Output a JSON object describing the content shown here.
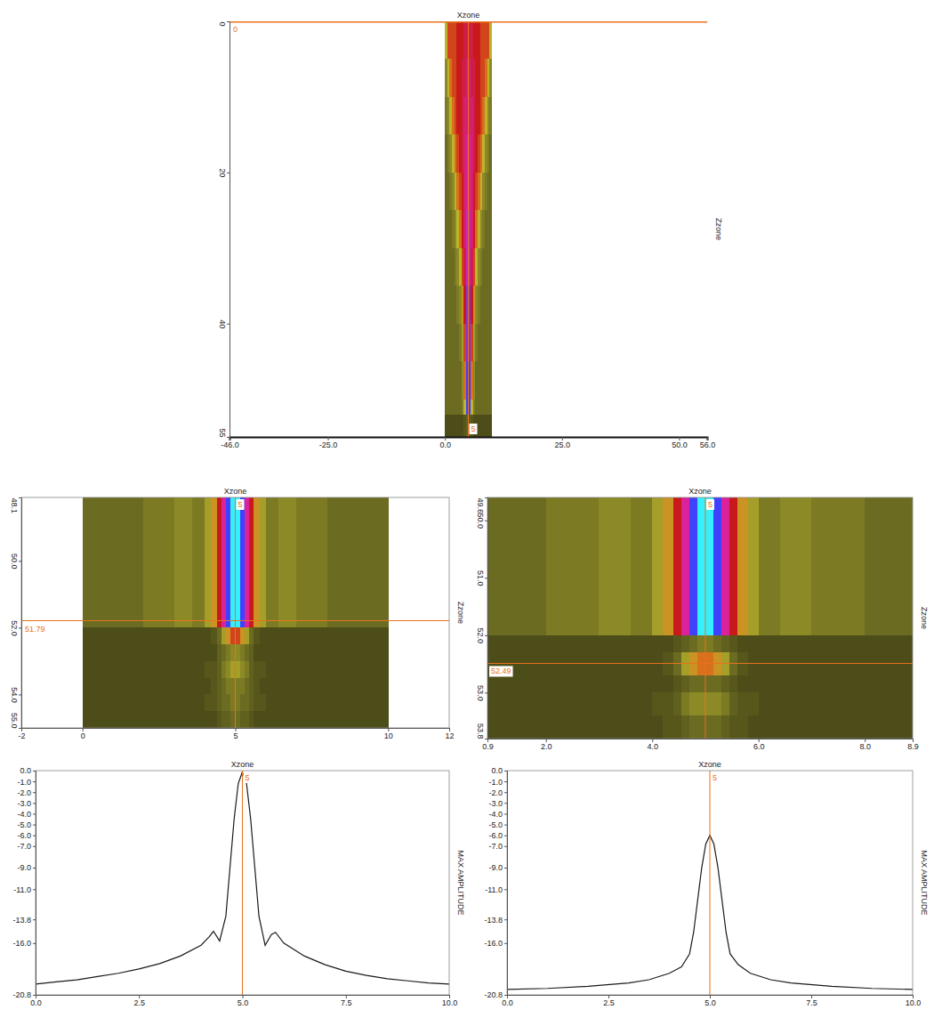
{
  "chart_data": [
    {
      "type": "heatmap",
      "title": "Xzone",
      "y_label": "Zzone",
      "xlim": [
        -46,
        56
      ],
      "xticks": [
        {
          "value": -46,
          "label": "-46.0"
        },
        {
          "value": -25,
          "label": "-25.0"
        },
        {
          "value": 0,
          "label": "0.0"
        },
        {
          "value": 25,
          "label": "25.0"
        },
        {
          "value": 50,
          "label": "50.0"
        },
        {
          "value": 56,
          "label": "56.0"
        }
      ],
      "ylim": [
        0,
        55
      ],
      "yticks": [
        0,
        20,
        40,
        55
      ],
      "color_range": [
        -20,
        0
      ],
      "x_edges": [
        0,
        0.5,
        1,
        1.5,
        2,
        2.5,
        3,
        3.5,
        4,
        4.5,
        5,
        5.5,
        6,
        6.5,
        7,
        7.5,
        8,
        8.5,
        9,
        9.5,
        10
      ],
      "z_edges": [
        0,
        5,
        10,
        15,
        20,
        25,
        30,
        35,
        40,
        45,
        50,
        52,
        55
      ],
      "cells": [
        [
          -12,
          -9,
          -9,
          -9,
          -9,
          -8,
          -8,
          -8,
          -7,
          -7,
          -7,
          -7,
          -8,
          -8,
          -8,
          -9,
          -9,
          -9,
          -9,
          -12
        ],
        [
          -14,
          -12,
          -10,
          -9,
          -9,
          -8,
          -8,
          -7,
          -7,
          -6,
          -6,
          -7,
          -7,
          -8,
          -8,
          -9,
          -9,
          -10,
          -12,
          -14
        ],
        [
          -15,
          -14,
          -12,
          -10,
          -9,
          -8,
          -8,
          -7,
          -6,
          -6,
          -6,
          -6,
          -7,
          -8,
          -8,
          -9,
          -10,
          -12,
          -14,
          -15
        ],
        [
          -16,
          -15,
          -14,
          -12,
          -10,
          -9,
          -8,
          -7,
          -6,
          -5,
          -5,
          -6,
          -7,
          -8,
          -9,
          -10,
          -12,
          -14,
          -15,
          -16
        ],
        [
          -16,
          -16,
          -15,
          -14,
          -12,
          -10,
          -9,
          -8,
          -6,
          -5,
          -5,
          -6,
          -8,
          -9,
          -10,
          -12,
          -14,
          -15,
          -16,
          -16
        ],
        [
          -16,
          -16,
          -16,
          -15,
          -14,
          -12,
          -10,
          -8,
          -6,
          -4,
          -4,
          -6,
          -8,
          -10,
          -12,
          -14,
          -15,
          -16,
          -16,
          -16
        ],
        [
          -16,
          -16,
          -16,
          -16,
          -15,
          -14,
          -12,
          -9,
          -7,
          -4,
          -4,
          -7,
          -9,
          -12,
          -14,
          -15,
          -16,
          -16,
          -16,
          -16
        ],
        [
          -16,
          -16,
          -16,
          -16,
          -16,
          -15,
          -14,
          -11,
          -8,
          -3,
          -3,
          -8,
          -11,
          -14,
          -15,
          -16,
          -16,
          -16,
          -16,
          -16
        ],
        [
          -16,
          -16,
          -16,
          -16,
          -16,
          -16,
          -15,
          -13,
          -9,
          -3,
          -3,
          -9,
          -13,
          -15,
          -16,
          -16,
          -16,
          -16,
          -16,
          -16
        ],
        [
          -16,
          -16,
          -16,
          -16,
          -16,
          -16,
          -16,
          -14,
          -10,
          -2,
          -2,
          -10,
          -14,
          -16,
          -16,
          -16,
          -16,
          -16,
          -16,
          -16
        ],
        [
          -16,
          -16,
          -16,
          -16,
          -16,
          -16,
          -16,
          -15,
          -12,
          -2,
          -2,
          -12,
          -15,
          -16,
          -16,
          -16,
          -16,
          -16,
          -16,
          -16
        ],
        [
          -19,
          -19,
          -19,
          -19,
          -19,
          -19,
          -19,
          -19,
          -18,
          -17,
          -17,
          -18,
          -19,
          -19,
          -19,
          -19,
          -19,
          -19,
          -19,
          -19
        ]
      ],
      "cursor": {
        "x": 5,
        "z": 0
      }
    },
    {
      "type": "heatmap",
      "title": "Xzone",
      "y_label": "Zzone",
      "xlim": [
        -2,
        12
      ],
      "xticks": [
        -2,
        0,
        5,
        10,
        12
      ],
      "ylim": [
        48.1,
        55
      ],
      "yticks": [
        48.1,
        {
          "value": 50,
          "label": "50.0"
        },
        {
          "value": 52,
          "label": "52.0"
        },
        {
          "value": 54,
          "label": "54.0"
        },
        {
          "value": 55,
          "label": "55.0"
        }
      ],
      "color_range": [
        -20,
        0
      ],
      "x_edges": [
        0,
        2,
        3,
        3.6,
        4,
        4.2,
        4.4,
        4.55,
        4.7,
        4.85,
        5.15,
        5.3,
        5.45,
        5.6,
        5.8,
        6,
        6.4,
        7,
        8,
        10
      ],
      "z_edges": [
        48.1,
        52,
        52.5,
        53,
        53.5,
        54,
        54.5,
        55
      ],
      "cells": [
        [
          -16,
          -15,
          -14,
          -15,
          -13,
          -11,
          -8,
          -5,
          -2,
          0,
          -2,
          -5,
          -8,
          -11,
          -13,
          -15,
          -14,
          -15,
          -16
        ],
        [
          -19,
          -19,
          -19,
          -19,
          -19,
          -18,
          -16,
          -13,
          -11,
          -9,
          -11,
          -13,
          -16,
          -18,
          -19,
          -19,
          -19,
          -19,
          -19
        ],
        [
          -19,
          -19,
          -19,
          -19,
          -19,
          -19,
          -17,
          -16,
          -15,
          -14,
          -15,
          -16,
          -17,
          -19,
          -19,
          -19,
          -19,
          -19,
          -19
        ],
        [
          -19,
          -19,
          -19,
          -19,
          -18,
          -18,
          -17,
          -15,
          -14,
          -13,
          -14,
          -15,
          -17,
          -18,
          -18,
          -19,
          -19,
          -19,
          -19
        ],
        [
          -19,
          -19,
          -19,
          -19,
          -19,
          -18,
          -17,
          -16,
          -15,
          -15,
          -15,
          -16,
          -17,
          -18,
          -19,
          -19,
          -19,
          -19,
          -19
        ],
        [
          -19,
          -19,
          -19,
          -19,
          -18,
          -18,
          -17,
          -16,
          -16,
          -15,
          -16,
          -16,
          -17,
          -18,
          -18,
          -19,
          -19,
          -19,
          -19
        ],
        [
          -19,
          -19,
          -19,
          -19,
          -19,
          -19,
          -18,
          -17,
          -17,
          -16,
          -17,
          -17,
          -18,
          -19,
          -19,
          -19,
          -19,
          -19,
          -19
        ]
      ],
      "cursor": {
        "x": 5,
        "z": 51.79
      }
    },
    {
      "type": "heatmap",
      "title": "Xzone",
      "y_label": "Zzone",
      "xlim": [
        0.9,
        8.9
      ],
      "xticks": [
        0.9,
        {
          "value": 2,
          "label": "2.0"
        },
        {
          "value": 4,
          "label": "4.0"
        },
        {
          "value": 6,
          "label": "6.0"
        },
        {
          "value": 8,
          "label": "8.0"
        },
        8.9
      ],
      "ylim": [
        49.6,
        53.8
      ],
      "yticks": [
        49.6,
        {
          "value": 50,
          "label": "50.0"
        },
        {
          "value": 51,
          "label": "51.0"
        },
        {
          "value": 52,
          "label": "52.0"
        },
        {
          "value": 53,
          "label": "53.0"
        },
        53.8
      ],
      "color_range": [
        -20,
        0
      ],
      "x_edges": [
        0,
        2,
        3,
        3.6,
        4,
        4.2,
        4.4,
        4.55,
        4.7,
        4.85,
        5.15,
        5.3,
        5.45,
        5.6,
        5.8,
        6,
        6.4,
        7,
        8,
        10
      ],
      "z_edges": [
        49.6,
        52,
        52.3,
        52.7,
        53.0,
        53.4,
        53.8
      ],
      "cells": [
        [
          -16,
          -15,
          -14,
          -15,
          -13,
          -11,
          -8,
          -5,
          -2,
          0,
          -2,
          -5,
          -8,
          -11,
          -13,
          -15,
          -14,
          -15,
          -16
        ],
        [
          -19,
          -19,
          -19,
          -19,
          -19,
          -19,
          -18,
          -17,
          -16,
          -15,
          -16,
          -17,
          -18,
          -19,
          -19,
          -19,
          -19,
          -19,
          -19
        ],
        [
          -19,
          -19,
          -19,
          -19,
          -19,
          -18,
          -16,
          -13,
          -11,
          -10,
          -11,
          -13,
          -16,
          -18,
          -19,
          -19,
          -19,
          -19,
          -19
        ],
        [
          -19,
          -19,
          -19,
          -19,
          -19,
          -19,
          -18,
          -17,
          -16,
          -16,
          -16,
          -17,
          -18,
          -19,
          -19,
          -19,
          -19,
          -19,
          -19
        ],
        [
          -19,
          -19,
          -19,
          -19,
          -18,
          -18,
          -17,
          -15,
          -14,
          -14,
          -14,
          -15,
          -17,
          -18,
          -18,
          -19,
          -19,
          -19,
          -19
        ],
        [
          -19,
          -19,
          -19,
          -19,
          -19,
          -18,
          -18,
          -17,
          -16,
          -16,
          -16,
          -17,
          -18,
          -18,
          -19,
          -19,
          -19,
          -19,
          -19
        ]
      ],
      "cursor": {
        "x": 5,
        "z": 52.49
      }
    },
    {
      "type": "line",
      "title": "Xzone",
      "y_label": "MAX AMPLITUDE",
      "xlim": [
        0,
        10
      ],
      "xticks": [
        {
          "value": 0,
          "label": "0.0"
        },
        2.5,
        {
          "value": 5,
          "label": "5.0"
        },
        7.5,
        {
          "value": 10,
          "label": "10.0"
        }
      ],
      "ylim": [
        -20.8,
        0
      ],
      "yticks": [
        {
          "value": 0,
          "label": "0.0"
        },
        {
          "value": -1,
          "label": "-1.0"
        },
        {
          "value": -2,
          "label": "-2.0"
        },
        {
          "value": -3,
          "label": "-3.0"
        },
        {
          "value": -4,
          "label": "-4.0"
        },
        {
          "value": -5,
          "label": "-5.0"
        },
        {
          "value": -6,
          "label": "-6.0"
        },
        {
          "value": -7,
          "label": "-7.0"
        },
        {
          "value": -9,
          "label": "-9.0"
        },
        {
          "value": -11,
          "label": "-11.0"
        },
        -13.8,
        {
          "value": -16,
          "label": "-16.0"
        },
        -20.8
      ],
      "x": [
        0,
        0.5,
        1,
        1.5,
        2,
        2.5,
        3,
        3.5,
        4,
        4.2,
        4.3,
        4.45,
        4.6,
        4.7,
        4.8,
        4.9,
        5.0,
        5.1,
        5.2,
        5.3,
        5.4,
        5.55,
        5.7,
        5.8,
        6,
        6.5,
        7,
        7.5,
        8,
        8.5,
        9,
        9.5,
        10
      ],
      "series": [
        {
          "color": "#1a1a1a",
          "values": [
            -19.8,
            -19.6,
            -19.4,
            -19.1,
            -18.8,
            -18.4,
            -17.9,
            -17.2,
            -16.2,
            -15.4,
            -14.9,
            -15.8,
            -13.5,
            -9,
            -4.5,
            -1.2,
            -0.1,
            -1.2,
            -4.5,
            -9,
            -13.5,
            -16.2,
            -15.2,
            -15.0,
            -16.0,
            -17.2,
            -18.0,
            -18.6,
            -19.0,
            -19.3,
            -19.5,
            -19.7,
            -19.8
          ]
        }
      ],
      "cursor": {
        "x": 5
      }
    },
    {
      "type": "line",
      "title": "Xzone",
      "y_label": "MAX AMPLITUDE",
      "xlim": [
        0,
        10
      ],
      "xticks": [
        {
          "value": 0,
          "label": "0.0"
        },
        2.5,
        {
          "value": 5,
          "label": "5.0"
        },
        7.5,
        {
          "value": 10,
          "label": "10.0"
        }
      ],
      "ylim": [
        -20.8,
        0
      ],
      "yticks": [
        {
          "value": 0,
          "label": "0.0"
        },
        {
          "value": -1,
          "label": "-1.0"
        },
        {
          "value": -2,
          "label": "-2.0"
        },
        {
          "value": -3,
          "label": "-3.0"
        },
        {
          "value": -4,
          "label": "-4.0"
        },
        {
          "value": -5,
          "label": "-5.0"
        },
        {
          "value": -6,
          "label": "-6.0"
        },
        {
          "value": -7,
          "label": "-7.0"
        },
        {
          "value": -9,
          "label": "-9.0"
        },
        {
          "value": -11,
          "label": "-11.0"
        },
        -13.8,
        {
          "value": -16,
          "label": "-16.0"
        },
        -20.8
      ],
      "x": [
        0,
        1,
        2,
        3,
        3.5,
        4,
        4.3,
        4.5,
        4.6,
        4.7,
        4.8,
        4.9,
        5.0,
        5.1,
        5.2,
        5.3,
        5.4,
        5.5,
        5.7,
        6,
        6.5,
        7,
        8,
        9,
        10
      ],
      "series": [
        {
          "color": "#1a1a1a",
          "values": [
            -20.3,
            -20.2,
            -20.0,
            -19.7,
            -19.4,
            -18.8,
            -18.2,
            -17.0,
            -15.0,
            -12.0,
            -9.0,
            -6.8,
            -6.0,
            -6.8,
            -9.0,
            -12.0,
            -15.0,
            -17.0,
            -18.0,
            -18.8,
            -19.4,
            -19.7,
            -20.0,
            -20.2,
            -20.3
          ]
        }
      ],
      "cursor": {
        "x": 5
      }
    }
  ]
}
